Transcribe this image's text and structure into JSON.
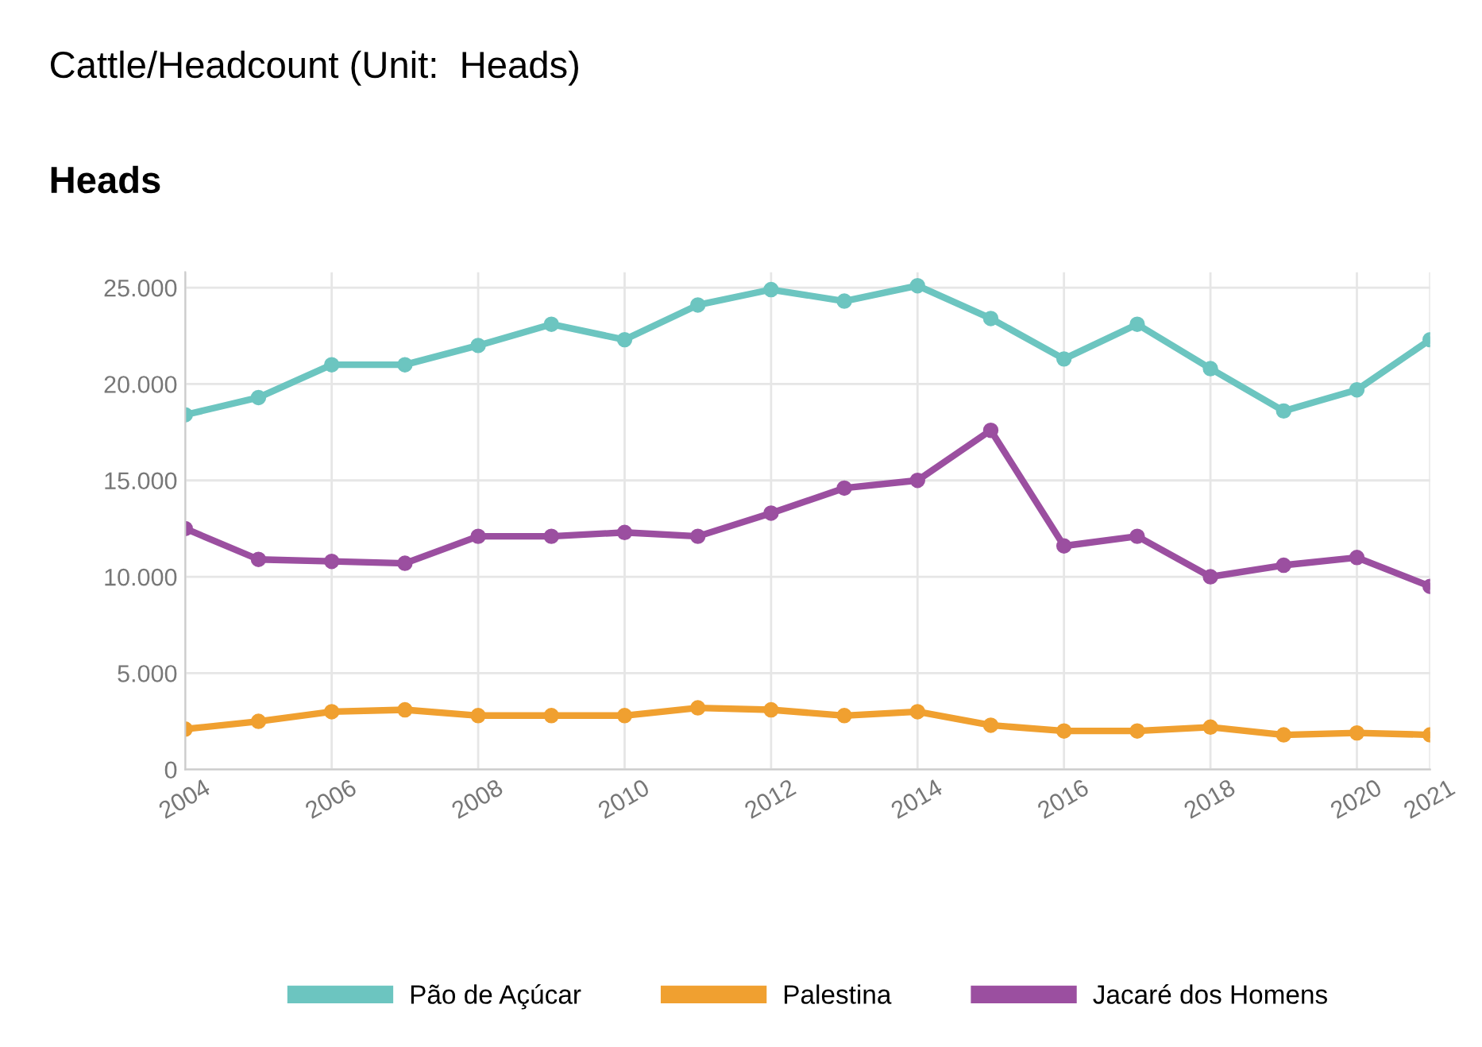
{
  "chart_data": {
    "type": "line",
    "title": "Cattle/Headcount (Unit:  Heads)",
    "ylabel": "Heads",
    "x": [
      2004,
      2005,
      2006,
      2007,
      2008,
      2009,
      2010,
      2011,
      2012,
      2013,
      2014,
      2015,
      2016,
      2017,
      2018,
      2019,
      2020,
      2021
    ],
    "series": [
      {
        "name": "Pão de Açúcar",
        "color": "#6cc5c0",
        "values": [
          18400,
          19300,
          21000,
          21000,
          22000,
          23100,
          22300,
          24100,
          24900,
          24300,
          25100,
          23400,
          21300,
          23100,
          20800,
          18600,
          19700,
          22300
        ]
      },
      {
        "name": "Palestina",
        "color": "#f0a030",
        "values": [
          2100,
          2500,
          3000,
          3100,
          2800,
          2800,
          2800,
          3200,
          3100,
          2800,
          3000,
          2300,
          2000,
          2000,
          2200,
          1800,
          1900,
          1800
        ]
      },
      {
        "name": "Jacaré dos Homens",
        "color": "#9b4fa0",
        "values": [
          12500,
          10900,
          10800,
          10700,
          12100,
          12100,
          12300,
          12100,
          13300,
          14600,
          15000,
          17600,
          11600,
          12100,
          10000,
          10600,
          11000,
          9500
        ]
      }
    ],
    "xlim": [
      2004,
      2021
    ],
    "xticks": [
      2004,
      2006,
      2008,
      2010,
      2012,
      2014,
      2016,
      2018,
      2020,
      2021
    ],
    "ylim": [
      0,
      25800
    ],
    "yticks": [
      {
        "value": 0,
        "label": "0"
      },
      {
        "value": 5000,
        "label": "5.000"
      },
      {
        "value": 10000,
        "label": "10.000"
      },
      {
        "value": 15000,
        "label": "15.000"
      },
      {
        "value": 20000,
        "label": "20.000"
      },
      {
        "value": 25000,
        "label": "25.000"
      }
    ],
    "grid": true,
    "legend": "bottom",
    "marker": "circle",
    "line_style": "solid"
  }
}
